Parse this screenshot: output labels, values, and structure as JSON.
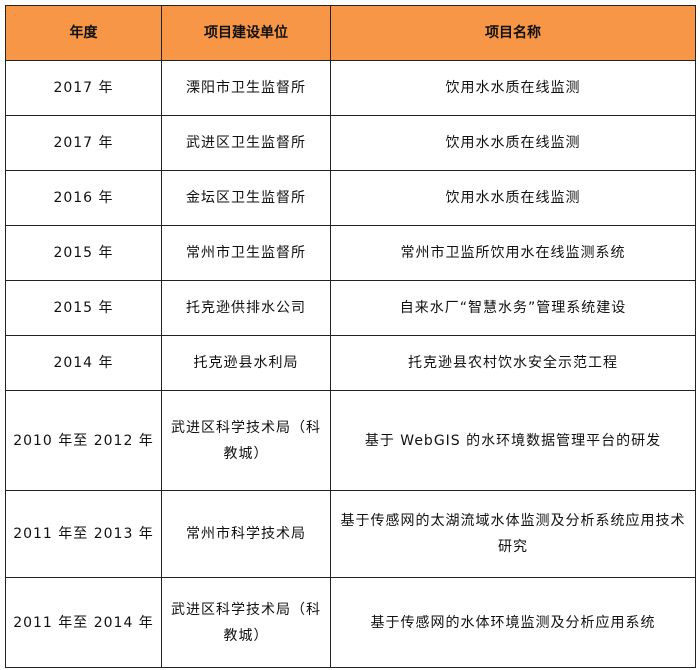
{
  "header_color": "#F79646",
  "columns": [
    "年度",
    "项目建设单位",
    "项目名称"
  ],
  "rows": [
    {
      "year": "2017 年",
      "unit": "溧阳市卫生监督所",
      "name": "饮用水水质在线监测"
    },
    {
      "year": "2017 年",
      "unit": "武进区卫生监督所",
      "name": "饮用水水质在线监测"
    },
    {
      "year": "2016 年",
      "unit": "金坛区卫生监督所",
      "name": "饮用水水质在线监测"
    },
    {
      "year": "2015 年",
      "unit": "常州市卫生监督所",
      "name": "常州市卫监所饮用水在线监测系统"
    },
    {
      "year": "2015 年",
      "unit": "托克逊供排水公司",
      "name": "自来水厂“智慧水务”管理系统建设"
    },
    {
      "year": "2014 年",
      "unit": "托克逊县水利局",
      "name": "托克逊县农村饮水安全示范工程"
    },
    {
      "year": "2010 年至 2012 年",
      "unit": "武进区科学技术局（科教城）",
      "name": "基于 WebGIS 的水环境数据管理平台的研发"
    },
    {
      "year": "2011 年至 2013 年",
      "unit": "常州市科学技术局",
      "name": "基于传感网的太湖流域水体监测及分析系统应用技术研究"
    },
    {
      "year": "2011 年至 2014 年",
      "unit": "武进区科学技术局（科教城）",
      "name": "基于传感网的水体环境监测及分析应用系统"
    }
  ]
}
